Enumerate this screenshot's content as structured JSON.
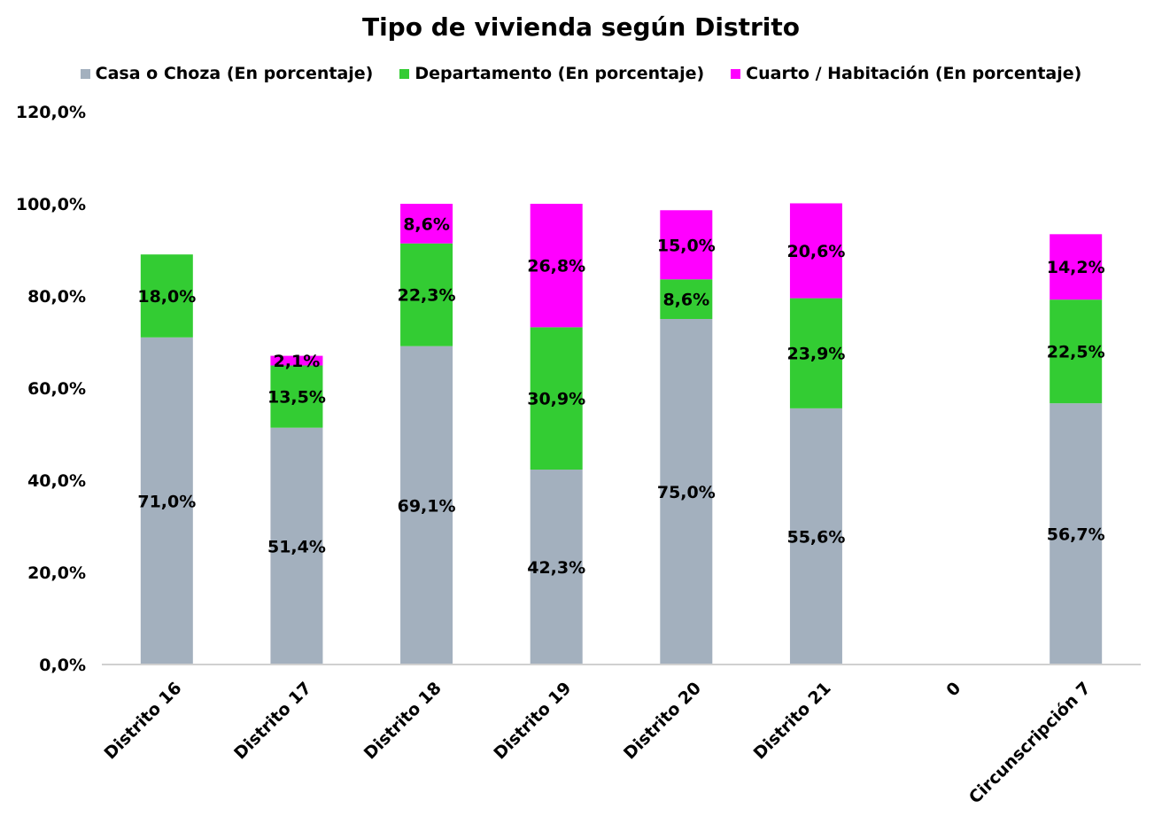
{
  "chart_data": {
    "type": "bar",
    "stacked": true,
    "title": "Tipo de vivienda según Distrito",
    "categories": [
      "Distrito 16",
      "Distrito 17",
      "Distrito 18",
      "Distrito 19",
      "Distrito 20",
      "Distrito 21",
      "0",
      "Circunscripción 7"
    ],
    "series": [
      {
        "name": "Casa o Choza (En porcentaje)",
        "color": "#a3b0be",
        "values": [
          71.0,
          51.4,
          69.1,
          42.3,
          75.0,
          55.6,
          null,
          56.7
        ],
        "labels": [
          "71,0%",
          "51,4%",
          "69,1%",
          "42,3%",
          "75,0%",
          "55,6%",
          "",
          "56,7%"
        ]
      },
      {
        "name": "Departamento (En porcentaje)",
        "color": "#33cc33",
        "values": [
          18.0,
          13.5,
          22.3,
          30.9,
          8.6,
          23.9,
          null,
          22.5
        ],
        "labels": [
          "18,0%",
          "13,5%",
          "22,3%",
          "30,9%",
          "8,6%",
          "23,9%",
          "",
          "22,5%"
        ]
      },
      {
        "name": "Cuarto / Habitación (En porcentaje)",
        "color": "#ff00ff",
        "values": [
          null,
          2.1,
          8.6,
          26.8,
          15.0,
          20.6,
          null,
          14.2
        ],
        "labels": [
          "",
          "2,1%",
          "8,6%",
          "26,8%",
          "15,0%",
          "20,6%",
          "",
          "14,2%"
        ]
      }
    ],
    "ylim": [
      0,
      120
    ],
    "yticks": [
      0,
      20,
      40,
      60,
      80,
      100,
      120
    ],
    "ytick_labels": [
      "0,0%",
      "20,0%",
      "40,0%",
      "60,0%",
      "80,0%",
      "100,0%",
      "120,0%"
    ],
    "grid": false,
    "legend_position": "top"
  }
}
